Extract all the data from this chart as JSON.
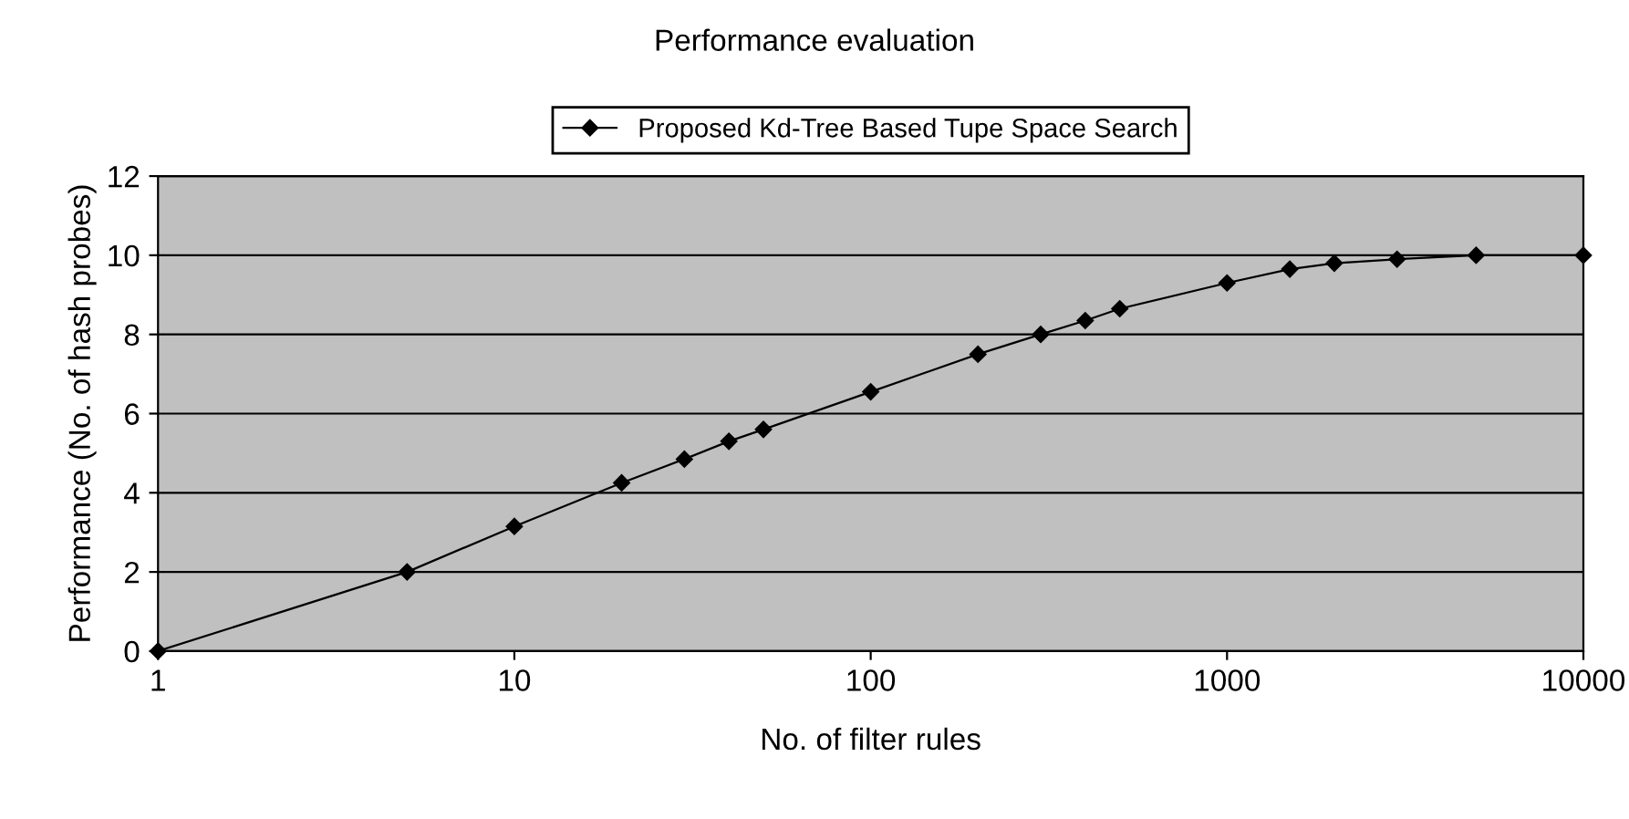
{
  "chart_data": {
    "type": "line",
    "title": "Performance evaluation",
    "xlabel": "No. of filter rules",
    "ylabel": "Performance (No. of hash probes)",
    "x": [
      1,
      5,
      10,
      20,
      30,
      40,
      50,
      100,
      200,
      300,
      400,
      500,
      1000,
      1500,
      2000,
      3000,
      5000,
      10000
    ],
    "series": [
      {
        "name": "Proposed Kd-Tree Based Tupe Space Search",
        "color": "#000000",
        "values": [
          0,
          2,
          3.15,
          4.25,
          4.85,
          5.3,
          5.6,
          6.55,
          7.5,
          8,
          8.35,
          8.65,
          9.3,
          9.65,
          9.8,
          9.9,
          10,
          10
        ]
      }
    ],
    "log": "x",
    "xlim": [
      1,
      10000
    ],
    "xticks": [
      1,
      10,
      100,
      1000,
      10000
    ],
    "ylim": [
      0,
      12
    ],
    "yticks": [
      0,
      2,
      4,
      6,
      8,
      10,
      12
    ],
    "grid": "y",
    "legend": "top",
    "marker": "diamond",
    "line_style": "solid"
  }
}
